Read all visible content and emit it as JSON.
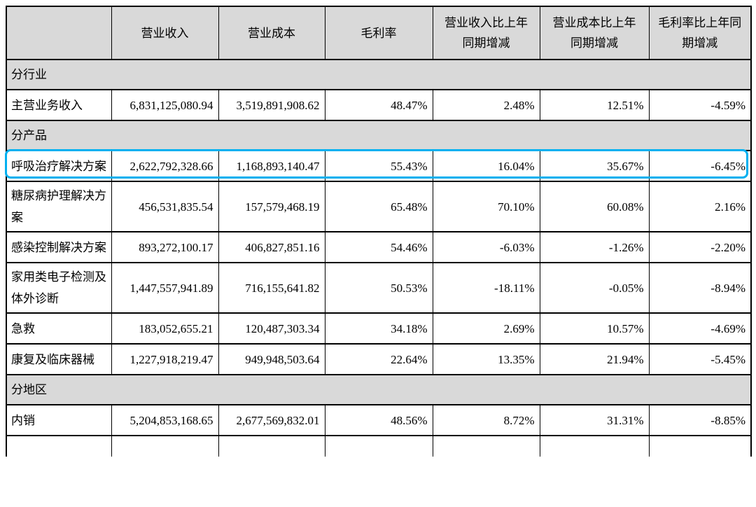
{
  "colors": {
    "section_bg": "#d9d9d9",
    "highlight_border": "#00b0f0",
    "table_border": "#000000"
  },
  "table": {
    "columns": [
      "",
      "营业收入",
      "营业成本",
      "毛利率",
      "营业收入比上年同期增减",
      "营业成本比上年同期增减",
      "毛利率比上年同期增减"
    ],
    "rows": [
      {
        "type": "section",
        "label": "分行业"
      },
      {
        "type": "data",
        "label": "主营业务收入",
        "values": [
          "6,831,125,080.94",
          "3,519,891,908.62",
          "48.47%",
          "2.48%",
          "12.51%",
          "-4.59%"
        ]
      },
      {
        "type": "section",
        "label": "分产品"
      },
      {
        "type": "data",
        "label": "呼吸治疗解决方案",
        "highlighted": true,
        "values": [
          "2,622,792,328.66",
          "1,168,893,140.47",
          "55.43%",
          "16.04%",
          "35.67%",
          "-6.45%"
        ]
      },
      {
        "type": "data",
        "label": "糖尿病护理解决方案",
        "values": [
          "456,531,835.54",
          "157,579,468.19",
          "65.48%",
          "70.10%",
          "60.08%",
          "2.16%"
        ]
      },
      {
        "type": "data",
        "label": "感染控制解决方案",
        "values": [
          "893,272,100.17",
          "406,827,851.16",
          "54.46%",
          "-6.03%",
          "-1.26%",
          "-2.20%"
        ]
      },
      {
        "type": "data",
        "label": "家用类电子检测及体外诊断",
        "values": [
          "1,447,557,941.89",
          "716,155,641.82",
          "50.53%",
          "-18.11%",
          "-0.05%",
          "-8.94%"
        ]
      },
      {
        "type": "data",
        "label": "急救",
        "values": [
          "183,052,655.21",
          "120,487,303.34",
          "34.18%",
          "2.69%",
          "10.57%",
          "-4.69%"
        ]
      },
      {
        "type": "data",
        "label": "康复及临床器械",
        "values": [
          "1,227,918,219.47",
          "949,948,503.64",
          "22.64%",
          "13.35%",
          "21.94%",
          "-5.45%"
        ]
      },
      {
        "type": "section",
        "label": "分地区"
      },
      {
        "type": "data",
        "label": "内销",
        "values": [
          "5,204,853,168.65",
          "2,677,569,832.01",
          "48.56%",
          "8.72%",
          "31.31%",
          "-8.85%"
        ]
      }
    ]
  }
}
